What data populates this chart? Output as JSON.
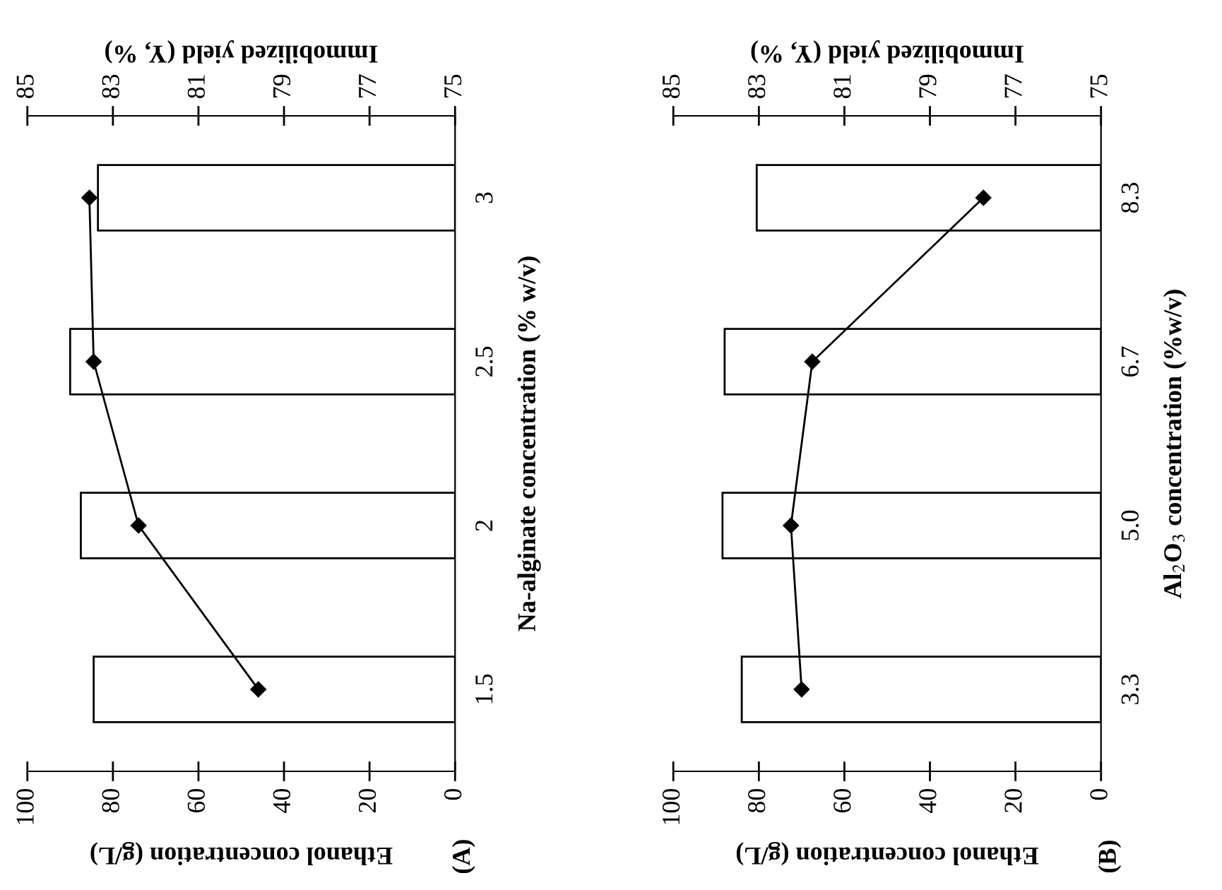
{
  "chart_data": [
    {
      "type": "bar",
      "orientation": "horizontal",
      "categories": [
        "3",
        "2.5",
        "2",
        "1.5"
      ],
      "xlabel": "Ethanol concentration (g/L)",
      "x2label": "Immobilized yield (Y, %)",
      "ylabel": "Na-alginate concentration (% w/v)",
      "xlim": [
        100,
        0
      ],
      "xticks": [
        100,
        80,
        60,
        40,
        20,
        0
      ],
      "x2lim": [
        85,
        75
      ],
      "x2ticks": [
        85,
        83,
        81,
        79,
        77,
        75
      ],
      "marker": "diamond",
      "grid": false,
      "legend": false,
      "annotations": [
        "(A)"
      ],
      "series": [
        {
          "color": "#ffffff",
          "values": [
            83.5,
            90,
            87.5,
            84.5
          ]
        },
        {
          "type": "line",
          "axis": "x2",
          "color": "#000000",
          "values": [
            83.55,
            83.45,
            82.4,
            79.6
          ]
        }
      ]
    },
    {
      "type": "bar",
      "orientation": "horizontal",
      "categories": [
        "8.3",
        "6.7",
        "5.0",
        "3.3"
      ],
      "xlabel": "Ethanol concentration (g/L)",
      "x2label": "Immobilized yield (Y, %)",
      "ylabel": "Al$_{2}$O$_{3}$ concentration (%w/v)",
      "xlim": [
        100,
        0
      ],
      "xticks": [
        100,
        80,
        60,
        40,
        20,
        0
      ],
      "x2lim": [
        85,
        75
      ],
      "x2ticks": [
        85,
        83,
        81,
        79,
        77,
        75
      ],
      "marker": "diamond",
      "grid": false,
      "legend": false,
      "annotations": [
        "(B)"
      ],
      "series": [
        {
          "color": "#ffffff",
          "values": [
            80.5,
            88,
            88.5,
            84
          ]
        },
        {
          "type": "line",
          "axis": "x2",
          "color": "#000000",
          "values": [
            77.75,
            81.75,
            82.25,
            82.0
          ]
        }
      ]
    }
  ]
}
